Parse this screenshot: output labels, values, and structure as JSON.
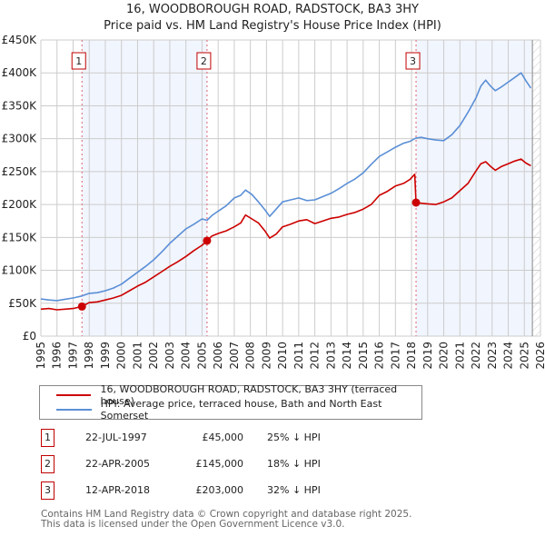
{
  "title": "16, WOODBOROUGH ROAD, RADSTOCK, BA3 3HY",
  "subtitle": "Price paid vs. HM Land Registry's House Price Index (HPI)",
  "chart_data": {
    "type": "line",
    "title": "16, WOODBOROUGH ROAD, RADSTOCK, BA3 3HY — Price paid vs. HM Land Registry's House Price Index (HPI)",
    "xlabel": "",
    "ylabel": "",
    "xlim": [
      1995,
      2026
    ],
    "ylim": [
      0,
      450000
    ],
    "grid": true,
    "x_ticks": [
      "1995",
      "1996",
      "1997",
      "1998",
      "1999",
      "2000",
      "2001",
      "2002",
      "2003",
      "2004",
      "2005",
      "2006",
      "2007",
      "2008",
      "2009",
      "2010",
      "2011",
      "2012",
      "2013",
      "2014",
      "2015",
      "2016",
      "2017",
      "2018",
      "2019",
      "2020",
      "2021",
      "2022",
      "2023",
      "2024",
      "2025",
      "2026"
    ],
    "y_ticks": [
      {
        "value": 0,
        "label": "£0"
      },
      {
        "value": 50000,
        "label": "£50K"
      },
      {
        "value": 100000,
        "label": "£100K"
      },
      {
        "value": 150000,
        "label": "£150K"
      },
      {
        "value": 200000,
        "label": "£200K"
      },
      {
        "value": 250000,
        "label": "£250K"
      },
      {
        "value": 300000,
        "label": "£300K"
      },
      {
        "value": 350000,
        "label": "£350K"
      },
      {
        "value": 400000,
        "label": "£400K"
      },
      {
        "value": 450000,
        "label": "£450K"
      }
    ],
    "series": [
      {
        "name": "16, WOODBOROUGH ROAD, RADSTOCK, BA3 3HY (terraced house)",
        "color": "#cc0000",
        "x": [
          1995.0,
          1995.5,
          1996.0,
          1996.5,
          1997.0,
          1997.55,
          1998.0,
          1998.5,
          1999.0,
          1999.5,
          2000.0,
          2000.5,
          2001.0,
          2001.5,
          2002.0,
          2002.5,
          2003.0,
          2003.5,
          2004.0,
          2004.5,
          2005.0,
          2005.31,
          2005.6,
          2006.0,
          2006.5,
          2007.0,
          2007.4,
          2007.7,
          2008.1,
          2008.5,
          2008.9,
          2009.2,
          2009.6,
          2010.0,
          2010.5,
          2011.0,
          2011.5,
          2012.0,
          2012.5,
          2013.0,
          2013.5,
          2014.0,
          2014.5,
          2015.0,
          2015.5,
          2016.0,
          2016.5,
          2017.0,
          2017.5,
          2017.9,
          2018.2,
          2018.28,
          2018.6,
          2019.0,
          2019.5,
          2020.0,
          2020.5,
          2021.0,
          2021.5,
          2022.0,
          2022.3,
          2022.6,
          2022.9,
          2023.2,
          2023.6,
          2024.0,
          2024.4,
          2024.8,
          2025.1,
          2025.4
        ],
        "values": [
          41000,
          42000,
          40000,
          41000,
          42000,
          45000,
          51000,
          52000,
          55000,
          58000,
          62000,
          69000,
          76000,
          82000,
          90000,
          98000,
          106000,
          113000,
          121000,
          130000,
          138000,
          145000,
          152000,
          156000,
          160000,
          166000,
          172000,
          184000,
          178000,
          172000,
          160000,
          149000,
          155000,
          166000,
          170000,
          175000,
          177000,
          171000,
          175000,
          179000,
          181000,
          185000,
          188000,
          193000,
          200000,
          214000,
          220000,
          228000,
          232000,
          238000,
          246000,
          203000,
          202000,
          201000,
          200000,
          204000,
          210000,
          221000,
          232000,
          251000,
          262000,
          265000,
          258000,
          252000,
          258000,
          262000,
          266000,
          269000,
          263000,
          259000
        ]
      },
      {
        "name": "HPI: Average price, terraced house, Bath and North East Somerset",
        "color": "#5b8fd6",
        "x": [
          1995.0,
          1995.5,
          1996.0,
          1996.5,
          1997.0,
          1997.55,
          1998.0,
          1998.5,
          1999.0,
          1999.5,
          2000.0,
          2000.5,
          2001.0,
          2001.5,
          2002.0,
          2002.5,
          2003.0,
          2003.5,
          2004.0,
          2004.5,
          2005.0,
          2005.31,
          2005.6,
          2006.0,
          2006.5,
          2007.0,
          2007.4,
          2007.7,
          2008.1,
          2008.5,
          2008.9,
          2009.2,
          2009.6,
          2010.0,
          2010.5,
          2011.0,
          2011.5,
          2012.0,
          2012.5,
          2013.0,
          2013.5,
          2014.0,
          2014.5,
          2015.0,
          2015.5,
          2016.0,
          2016.5,
          2017.0,
          2017.5,
          2017.9,
          2018.2,
          2018.28,
          2018.6,
          2019.0,
          2019.5,
          2020.0,
          2020.5,
          2021.0,
          2021.5,
          2022.0,
          2022.3,
          2022.6,
          2022.9,
          2023.2,
          2023.6,
          2024.0,
          2024.4,
          2024.8,
          2025.1,
          2025.4
        ],
        "values": [
          56500,
          55000,
          54000,
          56000,
          58000,
          61000,
          65000,
          66000,
          69000,
          73000,
          79000,
          88000,
          97000,
          106000,
          116000,
          128000,
          141000,
          152000,
          163000,
          170000,
          178000,
          176000,
          183000,
          190000,
          198000,
          210000,
          214000,
          222000,
          215000,
          204000,
          192000,
          182000,
          193000,
          204000,
          207000,
          210000,
          206000,
          207000,
          212000,
          217000,
          224000,
          232000,
          239000,
          248000,
          261000,
          273000,
          280000,
          287000,
          293000,
          296000,
          300000,
          301000,
          302000,
          300000,
          298000,
          297000,
          306000,
          320000,
          340000,
          362000,
          380000,
          389000,
          380000,
          373000,
          379000,
          386000,
          393000,
          400000,
          388000,
          377000
        ]
      }
    ],
    "sales": [
      {
        "num": "1",
        "x": 1997.55,
        "value": 45000
      },
      {
        "num": "2",
        "x": 2005.31,
        "value": 145000
      },
      {
        "num": "3",
        "x": 2018.28,
        "value": 203000
      }
    ],
    "shaded_ranges": [
      [
        1997.55,
        2005.31
      ],
      [
        2018.28,
        2025.5
      ]
    ],
    "forecast_hatch_from": 2025.5
  },
  "legend": {
    "items": [
      {
        "label": "16, WOODBOROUGH ROAD, RADSTOCK, BA3 3HY (terraced house)",
        "color": "#cc0000"
      },
      {
        "label": "HPI: Average price, terraced house, Bath and North East Somerset",
        "color": "#5b8fd6"
      }
    ]
  },
  "sales_table": [
    {
      "num": "1",
      "date": "22-JUL-1997",
      "price": "£45,000",
      "hpi": "25% ↓ HPI"
    },
    {
      "num": "2",
      "date": "22-APR-2005",
      "price": "£145,000",
      "hpi": "18% ↓ HPI"
    },
    {
      "num": "3",
      "date": "12-APR-2018",
      "price": "£203,000",
      "hpi": "32% ↓ HPI"
    }
  ],
  "footer": {
    "line1": "Contains HM Land Registry data © Crown copyright and database right 2025.",
    "line2": "This data is licensed under the Open Government Licence v3.0."
  }
}
